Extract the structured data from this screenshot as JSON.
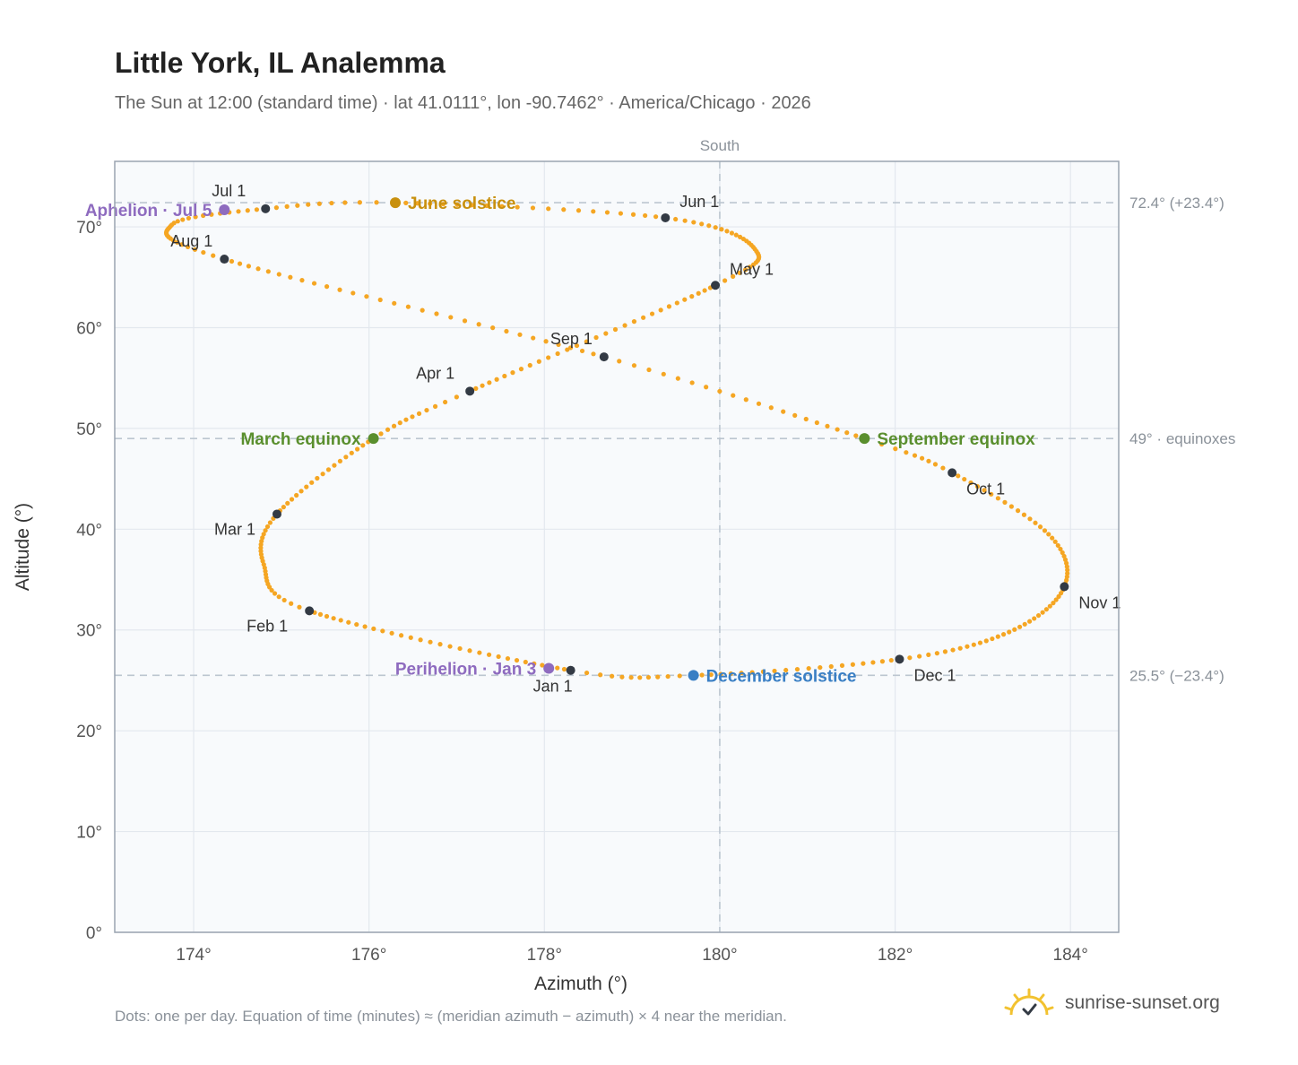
{
  "header": {
    "title": "Little York, IL Analemma",
    "subtitle": "The Sun at 12:00 (standard time) · lat 41.0111°, lon -90.7462° · America/Chicago · 2026"
  },
  "footer": {
    "note": "Dots: one per day. Equation of time (minutes) ≈ (meridian azimuth − azimuth) × 4 near the meridian.",
    "brand": "sunrise-sunset.org"
  },
  "colors": {
    "path": "#f5a623",
    "month": "#333a44",
    "june": "#c8900e",
    "december": "#3a7fc4",
    "equinox": "#5a8f2e",
    "apsis": "#8e6bbf",
    "grid": "#e3e8ee",
    "ref": "#bcc6d0",
    "plotBg": "#f8fafc",
    "border": "#9aa4b0"
  },
  "chart_data": {
    "type": "scatter",
    "xlabel": "Azimuth (°)",
    "ylabel": "Altitude (°)",
    "xlim": [
      173.1,
      184.55
    ],
    "ylim": [
      0,
      76.5
    ],
    "x_ticks": [
      {
        "value": 174,
        "label": "174°"
      },
      {
        "value": 176,
        "label": "176°"
      },
      {
        "value": 178,
        "label": "178°"
      },
      {
        "value": 180,
        "label": "180°"
      },
      {
        "value": 182,
        "label": "182°"
      },
      {
        "value": 184,
        "label": "184°"
      }
    ],
    "y_ticks": [
      {
        "value": 0,
        "label": "0°"
      },
      {
        "value": 10,
        "label": "10°"
      },
      {
        "value": 20,
        "label": "20°"
      },
      {
        "value": 30,
        "label": "30°"
      },
      {
        "value": 40,
        "label": "40°"
      },
      {
        "value": 50,
        "label": "50°"
      },
      {
        "value": 60,
        "label": "60°"
      },
      {
        "value": 70,
        "label": "70°"
      }
    ],
    "grid": true,
    "meridian": {
      "azimuth": 180,
      "label": "South"
    },
    "reference_lines": [
      {
        "altitude": 72.4,
        "label": "72.4° (+23.4°)"
      },
      {
        "altitude": 49,
        "label": "49° · equinoxes"
      },
      {
        "altitude": 25.5,
        "label": "25.5° (−23.4°)"
      }
    ],
    "path_anchors": [
      {
        "day": 1,
        "az": 178.3,
        "alt": 26.0
      },
      {
        "day": 32,
        "az": 175.32,
        "alt": 31.9
      },
      {
        "day": 46,
        "az": 174.8,
        "alt": 36.5
      },
      {
        "day": 60,
        "az": 174.95,
        "alt": 41.5
      },
      {
        "day": 79,
        "az": 176.05,
        "alt": 49.0
      },
      {
        "day": 91,
        "az": 177.15,
        "alt": 53.7
      },
      {
        "day": 121,
        "az": 179.95,
        "alt": 64.2
      },
      {
        "day": 135,
        "az": 180.4,
        "alt": 67.8
      },
      {
        "day": 152,
        "az": 179.38,
        "alt": 70.9
      },
      {
        "day": 172,
        "az": 176.3,
        "alt": 72.4
      },
      {
        "day": 182,
        "az": 174.82,
        "alt": 71.8
      },
      {
        "day": 195,
        "az": 173.75,
        "alt": 70.2
      },
      {
        "day": 213,
        "az": 174.35,
        "alt": 66.8
      },
      {
        "day": 244,
        "az": 178.68,
        "alt": 57.1
      },
      {
        "day": 265,
        "az": 181.65,
        "alt": 49.0
      },
      {
        "day": 274,
        "az": 182.65,
        "alt": 45.6
      },
      {
        "day": 290,
        "az": 183.75,
        "alt": 39.5
      },
      {
        "day": 305,
        "az": 183.93,
        "alt": 34.3
      },
      {
        "day": 320,
        "az": 183.3,
        "alt": 29.8
      },
      {
        "day": 335,
        "az": 182.05,
        "alt": 27.1
      },
      {
        "day": 355,
        "az": 179.7,
        "alt": 25.5
      },
      {
        "day": 366,
        "az": 178.3,
        "alt": 26.0
      }
    ],
    "months": [
      {
        "label": "Jan 1",
        "az": 178.3,
        "alt": 26.0,
        "anchor": "below"
      },
      {
        "label": "Feb 1",
        "az": 175.32,
        "alt": 31.9,
        "anchor": "below-left"
      },
      {
        "label": "Mar 1",
        "az": 174.95,
        "alt": 41.5,
        "anchor": "below-left"
      },
      {
        "label": "Apr 1",
        "az": 177.15,
        "alt": 53.7,
        "anchor": "above-left"
      },
      {
        "label": "May 1",
        "az": 179.95,
        "alt": 64.2,
        "anchor": "above-right"
      },
      {
        "label": "Jun 1",
        "az": 179.38,
        "alt": 70.9,
        "anchor": "above-right"
      },
      {
        "label": "Jul 1",
        "az": 174.82,
        "alt": 71.8,
        "anchor": "above-left"
      },
      {
        "label": "Aug 1",
        "az": 174.35,
        "alt": 66.8,
        "anchor": "above-left"
      },
      {
        "label": "Sep 1",
        "az": 178.68,
        "alt": 57.1,
        "anchor": "above-left"
      },
      {
        "label": "Oct 1",
        "az": 182.65,
        "alt": 45.6,
        "anchor": "below-right"
      },
      {
        "label": "Nov 1",
        "az": 183.93,
        "alt": 34.3,
        "anchor": "below-right"
      },
      {
        "label": "Dec 1",
        "az": 182.05,
        "alt": 27.1,
        "anchor": "below-right"
      }
    ],
    "events": [
      {
        "label": "June solstice",
        "az": 176.3,
        "alt": 72.4,
        "color_key": "june",
        "side": "right"
      },
      {
        "label": "December solstice",
        "az": 179.7,
        "alt": 25.5,
        "color_key": "december",
        "side": "right"
      },
      {
        "label": "March equinox",
        "az": 176.05,
        "alt": 49.0,
        "color_key": "equinox",
        "side": "left"
      },
      {
        "label": "September equinox",
        "az": 181.65,
        "alt": 49.0,
        "color_key": "equinox",
        "side": "right"
      },
      {
        "label": "Aphelion · Jul 5",
        "az": 174.35,
        "alt": 71.7,
        "color_key": "apsis",
        "side": "left"
      },
      {
        "label": "Perihelion · Jan 3",
        "az": 178.05,
        "alt": 26.2,
        "color_key": "apsis",
        "side": "left"
      }
    ]
  }
}
